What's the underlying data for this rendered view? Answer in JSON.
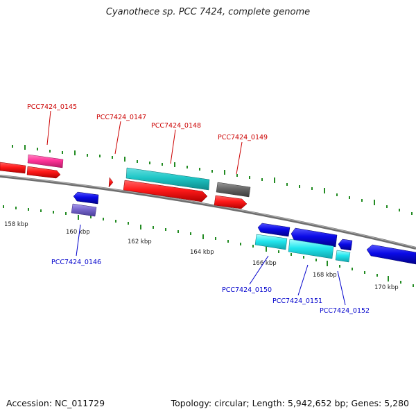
{
  "title": "Cyanothece sp. PCC 7424, complete genome",
  "footer": {
    "accession": "Accession: NC_011729",
    "summary": "Topology: circular; Length: 5,942,652 bp; Genes: 5,280"
  },
  "ticks": [
    "158 kbp",
    "160 kbp",
    "162 kbp",
    "164 kbp",
    "166 kbp",
    "168 kbp",
    "170 kbp"
  ],
  "genes": [
    {
      "label": "PCC7424_0145",
      "color": "#cc0000"
    },
    {
      "label": "PCC7424_0146",
      "color": "#0000cc"
    },
    {
      "label": "PCC7424_0147",
      "color": "#cc0000"
    },
    {
      "label": "PCC7424_0148",
      "color": "#cc0000"
    },
    {
      "label": "PCC7424_0149",
      "color": "#cc0000"
    },
    {
      "label": "PCC7424_0150",
      "color": "#0000cc"
    },
    {
      "label": "PCC7424_0151",
      "color": "#0000cc"
    },
    {
      "label": "PCC7424_0152",
      "color": "#0000cc"
    }
  ],
  "colors": {
    "forward_cds": "#ff1a1a",
    "reverse_cds": "#0a0ae6",
    "forward_rna": "#1fc6c6",
    "reverse_rna": "#22e6ee",
    "forward_other": "#ff3399",
    "reverse_other": "#7766cc",
    "pseudo": "#666666",
    "tick": "#228b22",
    "backbone": "#888888"
  }
}
